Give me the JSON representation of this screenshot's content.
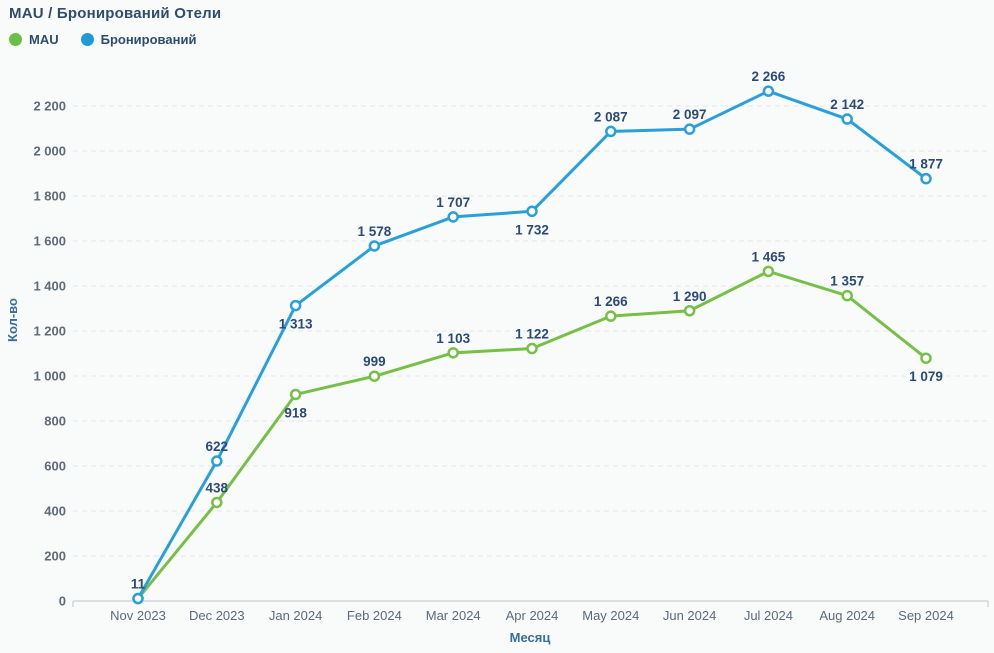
{
  "title": "MAU / Бронирований Отели",
  "legend": {
    "items": [
      {
        "label": "MAU",
        "color": "#6cbf45"
      },
      {
        "label": "Бронирований",
        "color": "#1e9ad6"
      }
    ]
  },
  "chart_data": {
    "type": "line",
    "title": "MAU / Бронирований Отели",
    "xlabel": "Месяц",
    "ylabel": "Кол-во",
    "x": [
      "Nov 2023",
      "Dec 2023",
      "Jan 2024",
      "Feb 2024",
      "Mar 2024",
      "Apr 2024",
      "May 2024",
      "Jun 2024",
      "Jul 2024",
      "Aug 2024",
      "Sep 2024"
    ],
    "series": [
      {
        "name": "MAU",
        "color": "#76c047",
        "values": [
          11,
          438,
          918,
          999,
          1103,
          1122,
          1266,
          1290,
          1465,
          1357,
          1079
        ],
        "label_positions": [
          "hidden",
          "above",
          "below",
          "above",
          "above",
          "above",
          "above",
          "above",
          "above",
          "above",
          "below"
        ]
      },
      {
        "name": "Бронирований",
        "color": "#29a0da",
        "values": [
          11,
          622,
          1313,
          1578,
          1707,
          1732,
          2087,
          2097,
          2266,
          2142,
          1877
        ],
        "label_positions": [
          "above",
          "above",
          "below",
          "above",
          "above",
          "below",
          "above",
          "above",
          "above",
          "above",
          "above"
        ]
      }
    ],
    "ylim": [
      0,
      2300
    ],
    "ytick_step": 200,
    "yticks": [
      0,
      200,
      400,
      600,
      800,
      1000,
      1200,
      1400,
      1600,
      1800,
      2000,
      2200
    ],
    "grid": true,
    "grid_style": "dashed",
    "legend_position": "top-left",
    "thousands_separator": " ",
    "marker": "open-circle"
  },
  "colors": {
    "background": "#f9fafa",
    "title": "#2e4d6e",
    "data_label": "#2b4a78",
    "tick": "#5d6a77",
    "axis_title": "#356e9d",
    "grid": "#e4e6e8",
    "axis_line": "#d3d6d8",
    "mau": "#76c047",
    "bookings": "#29a0da"
  }
}
